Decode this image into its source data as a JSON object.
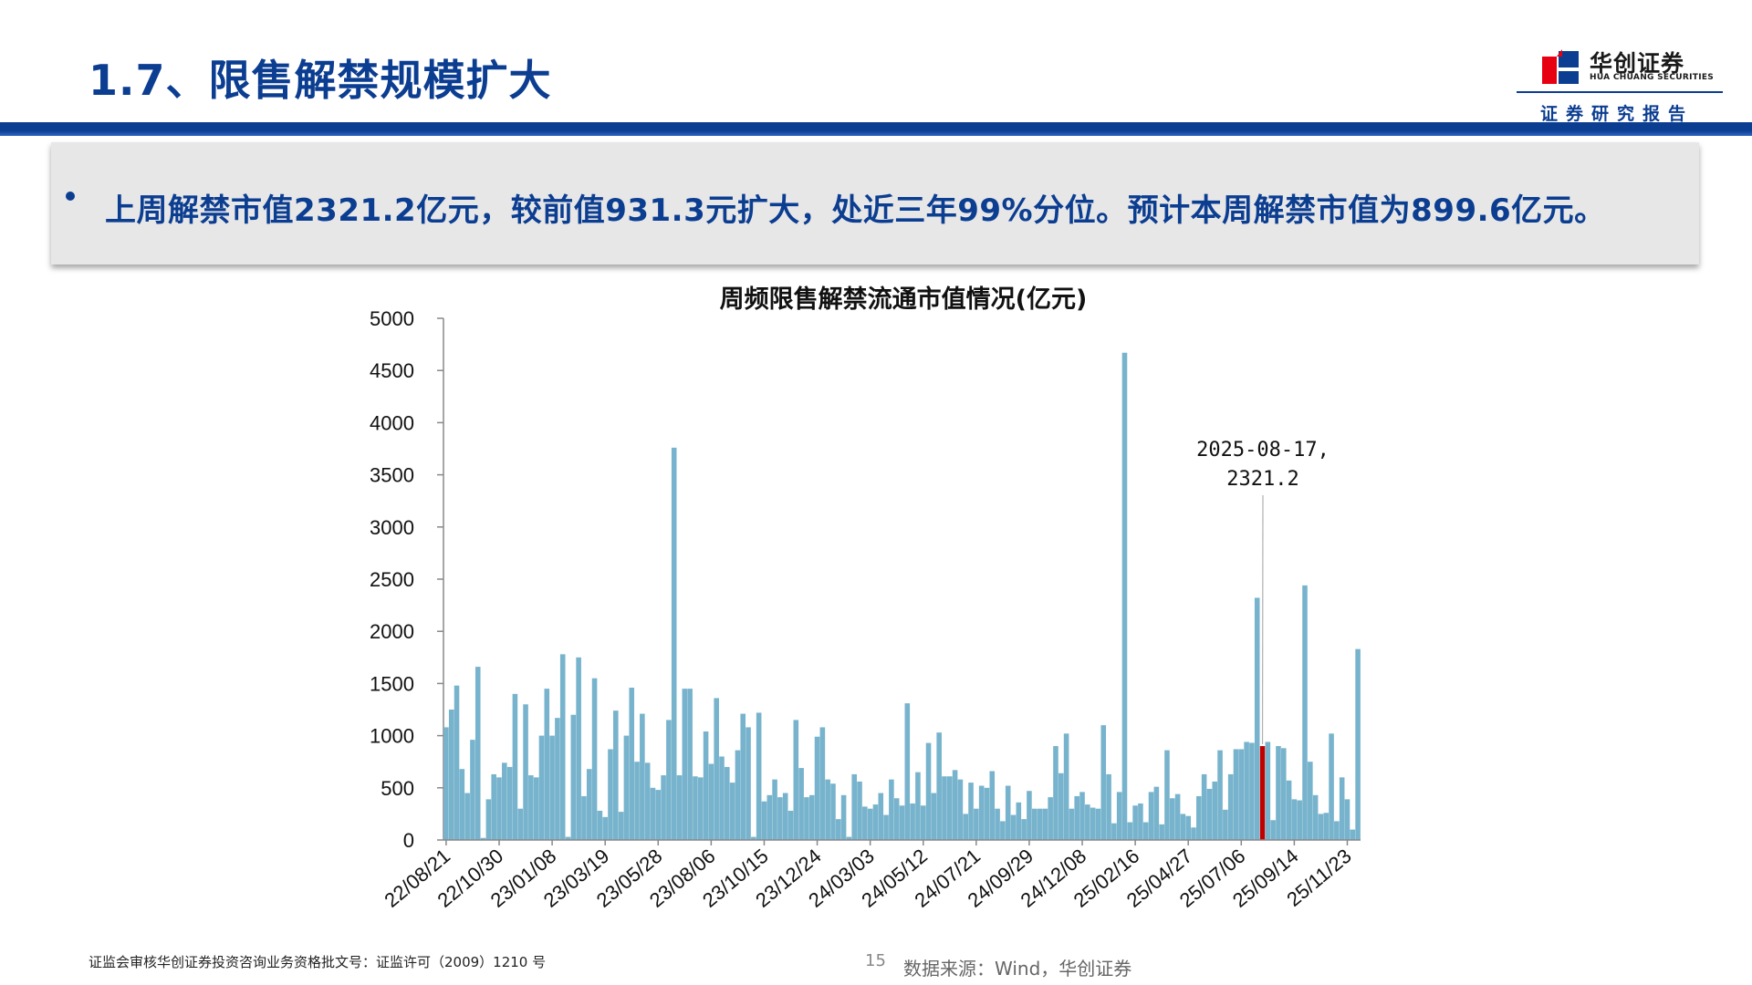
{
  "header": {
    "title": "1.7、限售解禁规模扩大",
    "logo_cn": "华创证券",
    "logo_en": "HUA CHUANG SECURITIES",
    "subtitle": "证券研究报告",
    "brand_color": "#0b3d91",
    "logo_color": "#e60012"
  },
  "summary": {
    "text": "上周解禁市值2321.2亿元，较前值931.3元扩大，处近三年99%分位。预计本周解禁市值为899.6亿元。"
  },
  "footer": {
    "license": "证监会审核华创证券投资咨询业务资格批文号：证监许可（2009）1210 号",
    "page": "15",
    "source": "数据来源：Wind，华创证券"
  },
  "chart_data": {
    "type": "bar",
    "title": "周频限售解禁流通市值情况(亿元)",
    "ylim": [
      0,
      5000
    ],
    "yticks": [
      "0",
      "500",
      "1000",
      "1500",
      "2000",
      "2500",
      "3000",
      "3500",
      "4000",
      "4500",
      "5000"
    ],
    "xtick_labels": [
      "22/08/21",
      "22/10/30",
      "23/01/08",
      "23/03/19",
      "23/05/28",
      "23/08/06",
      "23/10/15",
      "23/12/24",
      "24/03/03",
      "24/05/12",
      "24/07/21",
      "24/09/29",
      "24/12/08",
      "25/02/16",
      "25/04/27",
      "25/07/06",
      "25/09/14",
      "25/11/23"
    ],
    "xtick_every": 10,
    "series_color": "#77b3cc",
    "highlight_color": "#c00000",
    "highlight_index": 154,
    "annotation": {
      "date": "2025-08-17,",
      "value": "2321.2"
    },
    "values": [
      1080,
      1250,
      1480,
      680,
      450,
      960,
      1660,
      20,
      390,
      630,
      600,
      740,
      700,
      1400,
      300,
      1300,
      620,
      600,
      1000,
      1450,
      1000,
      1170,
      1780,
      30,
      1200,
      1750,
      420,
      680,
      1550,
      280,
      220,
      870,
      1240,
      270,
      1000,
      1460,
      750,
      1210,
      740,
      500,
      480,
      620,
      1150,
      3760,
      620,
      1450,
      1450,
      610,
      600,
      1040,
      730,
      1360,
      800,
      700,
      550,
      860,
      1210,
      1080,
      30,
      1220,
      370,
      430,
      580,
      410,
      450,
      280,
      1150,
      690,
      410,
      430,
      990,
      1080,
      580,
      540,
      200,
      430,
      30,
      630,
      560,
      320,
      300,
      340,
      450,
      240,
      580,
      400,
      330,
      1310,
      350,
      650,
      330,
      930,
      450,
      1030,
      610,
      610,
      670,
      580,
      250,
      550,
      300,
      520,
      500,
      660,
      300,
      180,
      520,
      240,
      360,
      200,
      470,
      300,
      300,
      300,
      410,
      900,
      640,
      1020,
      300,
      420,
      460,
      340,
      310,
      300,
      1100,
      630,
      160,
      460,
      4670,
      170,
      330,
      350,
      170,
      460,
      510,
      150,
      860,
      400,
      440,
      250,
      230,
      120,
      420,
      630,
      490,
      560,
      860,
      290,
      630,
      870,
      870,
      940,
      931.3,
      2321.2,
      900,
      940,
      190,
      900,
      880,
      570,
      390,
      380,
      2440,
      750,
      430,
      250,
      260,
      1020,
      180,
      600,
      390,
      100,
      1830
    ]
  }
}
